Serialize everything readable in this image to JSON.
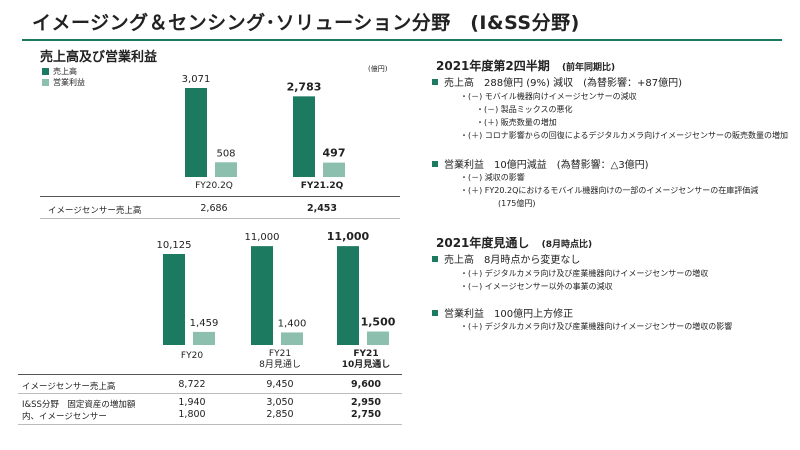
{
  "title": "イメージング＆センシング･ソリューション分野　(I&SS分野)",
  "left": {
    "heading": "売上高及び営業利益",
    "legend": [
      {
        "label": "売上高",
        "color": "#1b7a60"
      },
      {
        "label": "営業利益",
        "color": "#8cbfae"
      }
    ],
    "unit": "(億円)"
  },
  "chart_data": [
    {
      "type": "bar",
      "categories": [
        "FY20.2Q",
        "FY21.2Q"
      ],
      "series": [
        {
          "name": "売上高",
          "values": [
            3071,
            2783
          ],
          "labels": [
            "3,071",
            "2,783"
          ]
        },
        {
          "name": "営業利益",
          "values": [
            508,
            497
          ],
          "labels": [
            "508",
            "497"
          ]
        }
      ],
      "table": {
        "rows": [
          {
            "label": "イメージセンサー売上高",
            "values": [
              "2,686",
              "2,453"
            ]
          }
        ]
      }
    },
    {
      "type": "bar",
      "categories": [
        "FY20",
        "FY21\n8月見通し",
        "FY21\n10月見通し"
      ],
      "category_lines": [
        [
          "FY20"
        ],
        [
          "FY21",
          "8月見通し"
        ],
        [
          "FY21",
          "10月見通し"
        ]
      ],
      "series": [
        {
          "name": "売上高",
          "values": [
            10125,
            11000,
            11000
          ],
          "labels": [
            "10,125",
            "11,000",
            "11,000"
          ]
        },
        {
          "name": "営業利益",
          "values": [
            1459,
            1400,
            1500
          ],
          "labels": [
            "1,459",
            "1,400",
            "1,500"
          ]
        }
      ],
      "table": {
        "rows": [
          {
            "label": "イメージセンサー売上高",
            "values": [
              "8,722",
              "9,450",
              "9,600"
            ]
          },
          {
            "label": "I&SS分野　固定資産の増加額",
            "values": [
              "1,940",
              "3,050",
              "2,950"
            ]
          },
          {
            "label": "内、イメージセンサー",
            "values": [
              "1,800",
              "2,850",
              "2,750"
            ]
          }
        ]
      }
    }
  ],
  "right": {
    "q2": {
      "heading": "2021年度第2四半期",
      "heading_note": "(前年同期比)",
      "sales": "売上高　288億円 (9%) 減収　(為替影響：+87億円)",
      "sales_items": [
        "・(－) モバイル機器向けイメージセンサーの減収",
        "・(－) 製品ミックスの悪化",
        "・(＋) 販売数量の増加",
        "・(＋) コロナ影響からの回復によるデジタルカメラ向けイメージセンサーの販売数量の増加"
      ],
      "op": "営業利益　10億円減益　(為替影響：△3億円)",
      "op_items": [
        "・(－) 減収の影響",
        "・(＋) FY20.2Qにおけるモバイル機器向けの一部のイメージセンサーの在庫評価減",
        "(175億円)"
      ]
    },
    "forecast": {
      "heading": "2021年度見通し",
      "heading_note": "(8月時点比)",
      "sales": "売上高　8月時点から変更なし",
      "sales_items": [
        "・(＋) デジタルカメラ向け及び産業機器向けイメージセンサーの増収",
        "・(－) イメージセンサー以外の事業の減収"
      ],
      "op": "営業利益　100億円上方修正",
      "op_items": [
        "・(＋) デジタルカメラ向け及び産業機器向けイメージセンサーの増収の影響"
      ]
    }
  }
}
